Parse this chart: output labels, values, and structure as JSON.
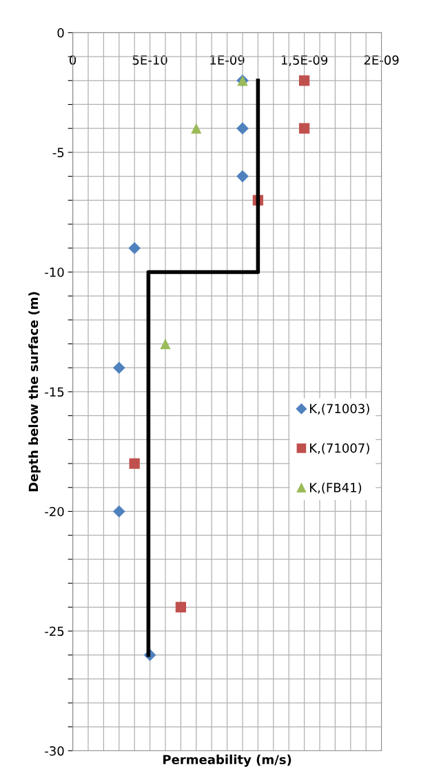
{
  "chart_data": {
    "type": "scatter",
    "xlabel": "Permeability (m/s)",
    "ylabel": "Depth below the surface (m)",
    "xlim": [
      0,
      2e-09
    ],
    "ylim": [
      -30,
      0
    ],
    "xticks": [
      0,
      {
        "value": 1e-10,
        "label": null
      },
      {
        "value": 2e-10,
        "label": null
      },
      {
        "value": 3e-10,
        "label": null
      },
      {
        "value": 4e-10,
        "label": null
      },
      {
        "value": 5e-10,
        "label": "5E-10"
      },
      {
        "value": 6e-10,
        "label": null
      },
      {
        "value": 7e-10,
        "label": null
      },
      {
        "value": 8e-10,
        "label": null
      },
      {
        "value": 9e-10,
        "label": null
      },
      {
        "value": 1e-09,
        "label": "1E-09"
      },
      {
        "value": 1.1e-09,
        "label": null
      },
      {
        "value": 1.2e-09,
        "label": null
      },
      {
        "value": 1.3e-09,
        "label": null
      },
      {
        "value": 1.4e-09,
        "label": null
      },
      {
        "value": 1.5e-09,
        "label": "1,5E-09"
      },
      {
        "value": 1.6e-09,
        "label": null
      },
      {
        "value": 1.7e-09,
        "label": null
      },
      {
        "value": 1.8e-09,
        "label": null
      },
      {
        "value": 1.9e-09,
        "label": null
      },
      {
        "value": 2e-09,
        "label": "2E-09"
      }
    ],
    "yticks": [
      -30,
      {
        "value": -29,
        "label": null
      },
      {
        "value": -28,
        "label": null
      },
      {
        "value": -27,
        "label": null
      },
      {
        "value": -26,
        "label": null
      },
      -25,
      {
        "value": -24,
        "label": null
      },
      {
        "value": -23,
        "label": null
      },
      {
        "value": -22,
        "label": null
      },
      {
        "value": -21,
        "label": null
      },
      -20,
      {
        "value": -19,
        "label": null
      },
      {
        "value": -18,
        "label": null
      },
      {
        "value": -17,
        "label": null
      },
      {
        "value": -16,
        "label": null
      },
      -15,
      {
        "value": -14,
        "label": null
      },
      {
        "value": -13,
        "label": null
      },
      {
        "value": -12,
        "label": null
      },
      {
        "value": -11,
        "label": null
      },
      -10,
      {
        "value": -9,
        "label": null
      },
      {
        "value": -8,
        "label": null
      },
      {
        "value": -7,
        "label": null
      },
      {
        "value": -6,
        "label": null
      },
      -5,
      {
        "value": -4,
        "label": null
      },
      {
        "value": -3,
        "label": null
      },
      {
        "value": -2,
        "label": null
      },
      {
        "value": -1,
        "label": null
      },
      0
    ],
    "grid": true,
    "legend": "right",
    "series": [
      {
        "name": "K,(71003)",
        "marker": "diamond",
        "color": "#4f81bd",
        "x": [
          1.1e-09,
          1.1e-09,
          1.1e-09,
          4e-10,
          3e-10,
          3e-10,
          5e-10
        ],
        "values": [
          -2,
          -4,
          -6,
          -9,
          -14,
          -20,
          -26
        ]
      },
      {
        "name": "K,(71007)",
        "marker": "square",
        "color": "#c0504d",
        "x": [
          1.5e-09,
          1.5e-09,
          1.2e-09,
          4e-10,
          7e-10
        ],
        "values": [
          -2,
          -4,
          -7,
          -18,
          -24
        ]
      },
      {
        "name": "K,(FB41)",
        "marker": "triangle",
        "color": "#9bbb59",
        "x": [
          1.1e-09,
          8e-10,
          6e-10
        ],
        "values": [
          -2,
          -4,
          -13
        ]
      },
      {
        "type": "line",
        "marker": "none",
        "line_style": "solid",
        "color": "#000000",
        "x": [
          1.2e-09,
          1.2e-09,
          4.9e-10,
          4.9e-10
        ],
        "values": [
          -2,
          -10,
          -10,
          -26
        ]
      }
    ]
  }
}
